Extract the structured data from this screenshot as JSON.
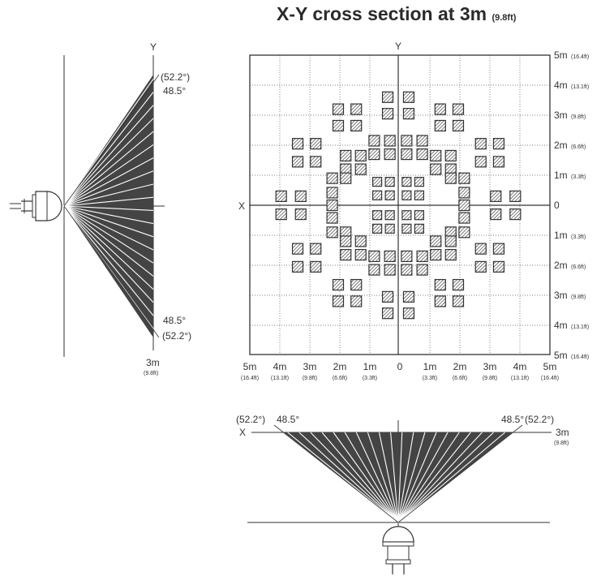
{
  "title": {
    "main": "X-Y cross section at 3m",
    "sub": "(9.8ft)"
  },
  "side_view": {
    "axis_y": "Y",
    "outer_angle": "(52.2°)",
    "inner_angle": "48.5°",
    "distance": "3m",
    "distance_ft": "(9.8ft)"
  },
  "grid": {
    "axis_x": "X",
    "axis_y": "Y",
    "right_labels": [
      {
        "m": "5m",
        "ft": "(16.4ft)"
      },
      {
        "m": "4m",
        "ft": "(13.1ft)"
      },
      {
        "m": "3m",
        "ft": "(9.8ft)"
      },
      {
        "m": "2m",
        "ft": "(6.6ft)"
      },
      {
        "m": "1m",
        "ft": "(3.3ft)"
      },
      {
        "m": "0",
        "ft": ""
      },
      {
        "m": "1m",
        "ft": "(3.3ft)"
      },
      {
        "m": "2m",
        "ft": "(6.6ft)"
      },
      {
        "m": "3m",
        "ft": "(9.8ft)"
      },
      {
        "m": "4m",
        "ft": "(13.1ft)"
      },
      {
        "m": "5m",
        "ft": "(16.4ft)"
      }
    ],
    "bottom_labels": [
      {
        "m": "5m",
        "ft": "(16.4ft)"
      },
      {
        "m": "4m",
        "ft": "(13.1ft)"
      },
      {
        "m": "3m",
        "ft": "(9.8ft)"
      },
      {
        "m": "2m",
        "ft": "(6.6ft)"
      },
      {
        "m": "1m",
        "ft": "(3.3ft)"
      },
      {
        "m": "0",
        "ft": ""
      },
      {
        "m": "1m",
        "ft": "(3.3ft)"
      },
      {
        "m": "2m",
        "ft": "(6.6ft)"
      },
      {
        "m": "3m",
        "ft": "(9.8ft)"
      },
      {
        "m": "4m",
        "ft": "(13.1ft)"
      },
      {
        "m": "5m",
        "ft": "(16.4ft)"
      }
    ]
  },
  "front_view": {
    "axis_x": "X",
    "outer_angle": "(52.2°)",
    "inner_angle": "48.5°",
    "distance": "3m",
    "distance_ft": "(9.8ft)"
  },
  "colors": {
    "line": "#333333",
    "grid_dotted": "#555555",
    "hatch": "#333333",
    "background": "#ffffff"
  }
}
